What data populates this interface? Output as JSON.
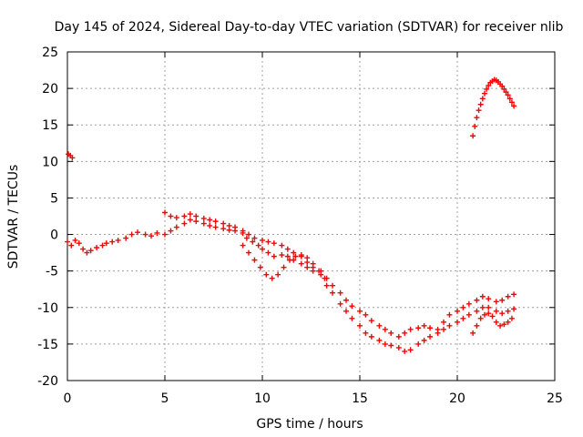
{
  "chart_data": {
    "type": "scatter",
    "title": "Day 145 of 2024, Sidereal Day-to-day VTEC variation (SDTVAR) for receiver nlib",
    "xlabel": "GPS time / hours",
    "ylabel": "SDTVAR / TECUs",
    "xlim": [
      0,
      25
    ],
    "ylim": [
      -20,
      25
    ],
    "xticks": [
      "0",
      "5",
      "10",
      "15",
      "20",
      "25"
    ],
    "yticks": [
      "-20",
      "-15",
      "-10",
      "-5",
      "0",
      "5",
      "10",
      "15",
      "20",
      "25"
    ],
    "grid": true,
    "marker": "+",
    "color": "#ff0000",
    "series": [
      {
        "name": "main-track",
        "x": [
          0.0,
          0.2,
          0.4,
          0.6,
          0.8,
          1.0,
          1.2,
          1.5,
          1.8,
          2.0,
          2.3,
          2.6,
          3.0,
          3.3,
          3.6,
          4.0,
          4.3,
          4.6,
          5.0,
          5.3,
          5.6,
          6.0,
          6.3,
          6.6,
          7.0,
          7.3,
          7.6,
          8.0,
          8.3,
          8.6,
          9.0,
          9.2,
          9.5,
          9.8,
          10.0,
          10.3,
          10.6,
          11.0,
          11.3,
          11.6,
          12.0,
          12.3,
          12.6,
          13.0,
          13.3,
          13.6,
          14.0,
          14.3,
          14.6,
          15.0,
          15.3,
          15.6,
          16.0,
          16.3,
          16.6,
          17.0,
          17.3,
          17.6,
          18.0,
          18.3,
          18.6,
          19.0,
          19.3,
          19.6,
          20.0,
          20.3,
          20.6,
          21.0,
          21.3,
          21.6,
          22.0,
          22.3,
          22.6,
          22.9
        ],
        "y": [
          -1.0,
          -1.5,
          -0.8,
          -1.2,
          -2.0,
          -2.5,
          -2.2,
          -1.8,
          -1.5,
          -1.2,
          -1.0,
          -0.8,
          -0.5,
          0.0,
          0.3,
          0.0,
          -0.2,
          0.2,
          0.0,
          0.5,
          1.0,
          1.5,
          2.0,
          1.8,
          1.5,
          1.2,
          1.0,
          0.8,
          0.6,
          0.5,
          0.2,
          -0.5,
          -1.0,
          -1.5,
          -2.0,
          -2.5,
          -3.0,
          -2.8,
          -3.0,
          -3.5,
          -4.0,
          -4.5,
          -5.0,
          -5.5,
          -7.0,
          -8.0,
          -9.5,
          -10.5,
          -11.5,
          -12.5,
          -13.5,
          -14.0,
          -14.5,
          -15.0,
          -15.2,
          -15.5,
          -16.0,
          -15.8,
          -15.0,
          -14.5,
          -14.0,
          -13.5,
          -13.0,
          -12.5,
          -12.0,
          -11.5,
          -11.0,
          -10.5,
          -10.0,
          -10.0,
          -10.5,
          -10.8,
          -10.5,
          -10.2
        ]
      },
      {
        "name": "upper-branch",
        "x": [
          5.0,
          5.3,
          5.6,
          6.0,
          6.3,
          6.6,
          7.0,
          7.3,
          7.6,
          8.0,
          8.3,
          8.6,
          9.0,
          9.3,
          9.6,
          10.0,
          10.3,
          10.6,
          11.0,
          11.3,
          11.6,
          12.0,
          12.3,
          12.6,
          13.0,
          13.3,
          13.6,
          14.0,
          14.3,
          14.6,
          15.0,
          15.3,
          15.6,
          16.0,
          16.3,
          16.6,
          17.0,
          17.3,
          17.6,
          18.0,
          18.3,
          18.6,
          19.0,
          19.3,
          19.6,
          20.0,
          20.3,
          20.6,
          21.0,
          21.3,
          21.6,
          22.0,
          22.3,
          22.6,
          22.9
        ],
        "y": [
          3.0,
          2.5,
          2.3,
          2.5,
          2.8,
          2.5,
          2.2,
          2.0,
          1.8,
          1.5,
          1.2,
          1.0,
          0.5,
          0.0,
          -0.5,
          -0.8,
          -1.0,
          -1.2,
          -1.5,
          -2.0,
          -2.5,
          -3.0,
          -3.8,
          -4.5,
          -5.0,
          -6.0,
          -7.0,
          -8.0,
          -9.0,
          -9.8,
          -10.5,
          -11.0,
          -11.8,
          -12.5,
          -13.0,
          -13.5,
          -14.0,
          -13.5,
          -13.0,
          -12.8,
          -12.5,
          -12.8,
          -13.0,
          -12.0,
          -11.0,
          -10.5,
          -10.0,
          -9.5,
          -9.0,
          -8.5,
          -8.8,
          -9.2,
          -9.0,
          -8.5,
          -8.2
        ]
      },
      {
        "name": "hump-branch",
        "x": [
          9.0,
          9.3,
          9.6,
          9.9,
          10.2,
          10.5,
          10.8,
          11.1,
          11.4,
          11.7,
          12.0,
          12.3,
          12.6,
          12.9,
          13.2
        ],
        "y": [
          -1.5,
          -2.5,
          -3.5,
          -4.5,
          -5.5,
          -6.0,
          -5.5,
          -4.5,
          -3.5,
          -3.0,
          -2.8,
          -3.2,
          -4.0,
          -5.0,
          -6.0
        ]
      },
      {
        "name": "lower-tail",
        "x": [
          20.8,
          21.0,
          21.2,
          21.4,
          21.6,
          21.8,
          22.0,
          22.2,
          22.4,
          22.6,
          22.8
        ],
        "y": [
          -13.5,
          -12.5,
          -11.5,
          -11.0,
          -10.8,
          -11.2,
          -12.0,
          -12.5,
          -12.3,
          -12.0,
          -11.5
        ]
      },
      {
        "name": "early-point",
        "x": [
          0.05,
          0.15,
          0.25
        ],
        "y": [
          11.0,
          10.8,
          10.5
        ]
      },
      {
        "name": "late-arc",
        "x": [
          20.8,
          20.9,
          21.0,
          21.1,
          21.2,
          21.3,
          21.4,
          21.5,
          21.6,
          21.7,
          21.8,
          21.9,
          22.0,
          22.1,
          22.2,
          22.3,
          22.4,
          22.5,
          22.6,
          22.7,
          22.8,
          22.9
        ],
        "y": [
          13.5,
          14.8,
          16.0,
          17.0,
          17.8,
          18.6,
          19.3,
          19.9,
          20.4,
          20.8,
          21.0,
          21.2,
          21.1,
          20.9,
          20.6,
          20.3,
          19.9,
          19.5,
          19.1,
          18.6,
          18.1,
          17.6
        ]
      }
    ]
  }
}
